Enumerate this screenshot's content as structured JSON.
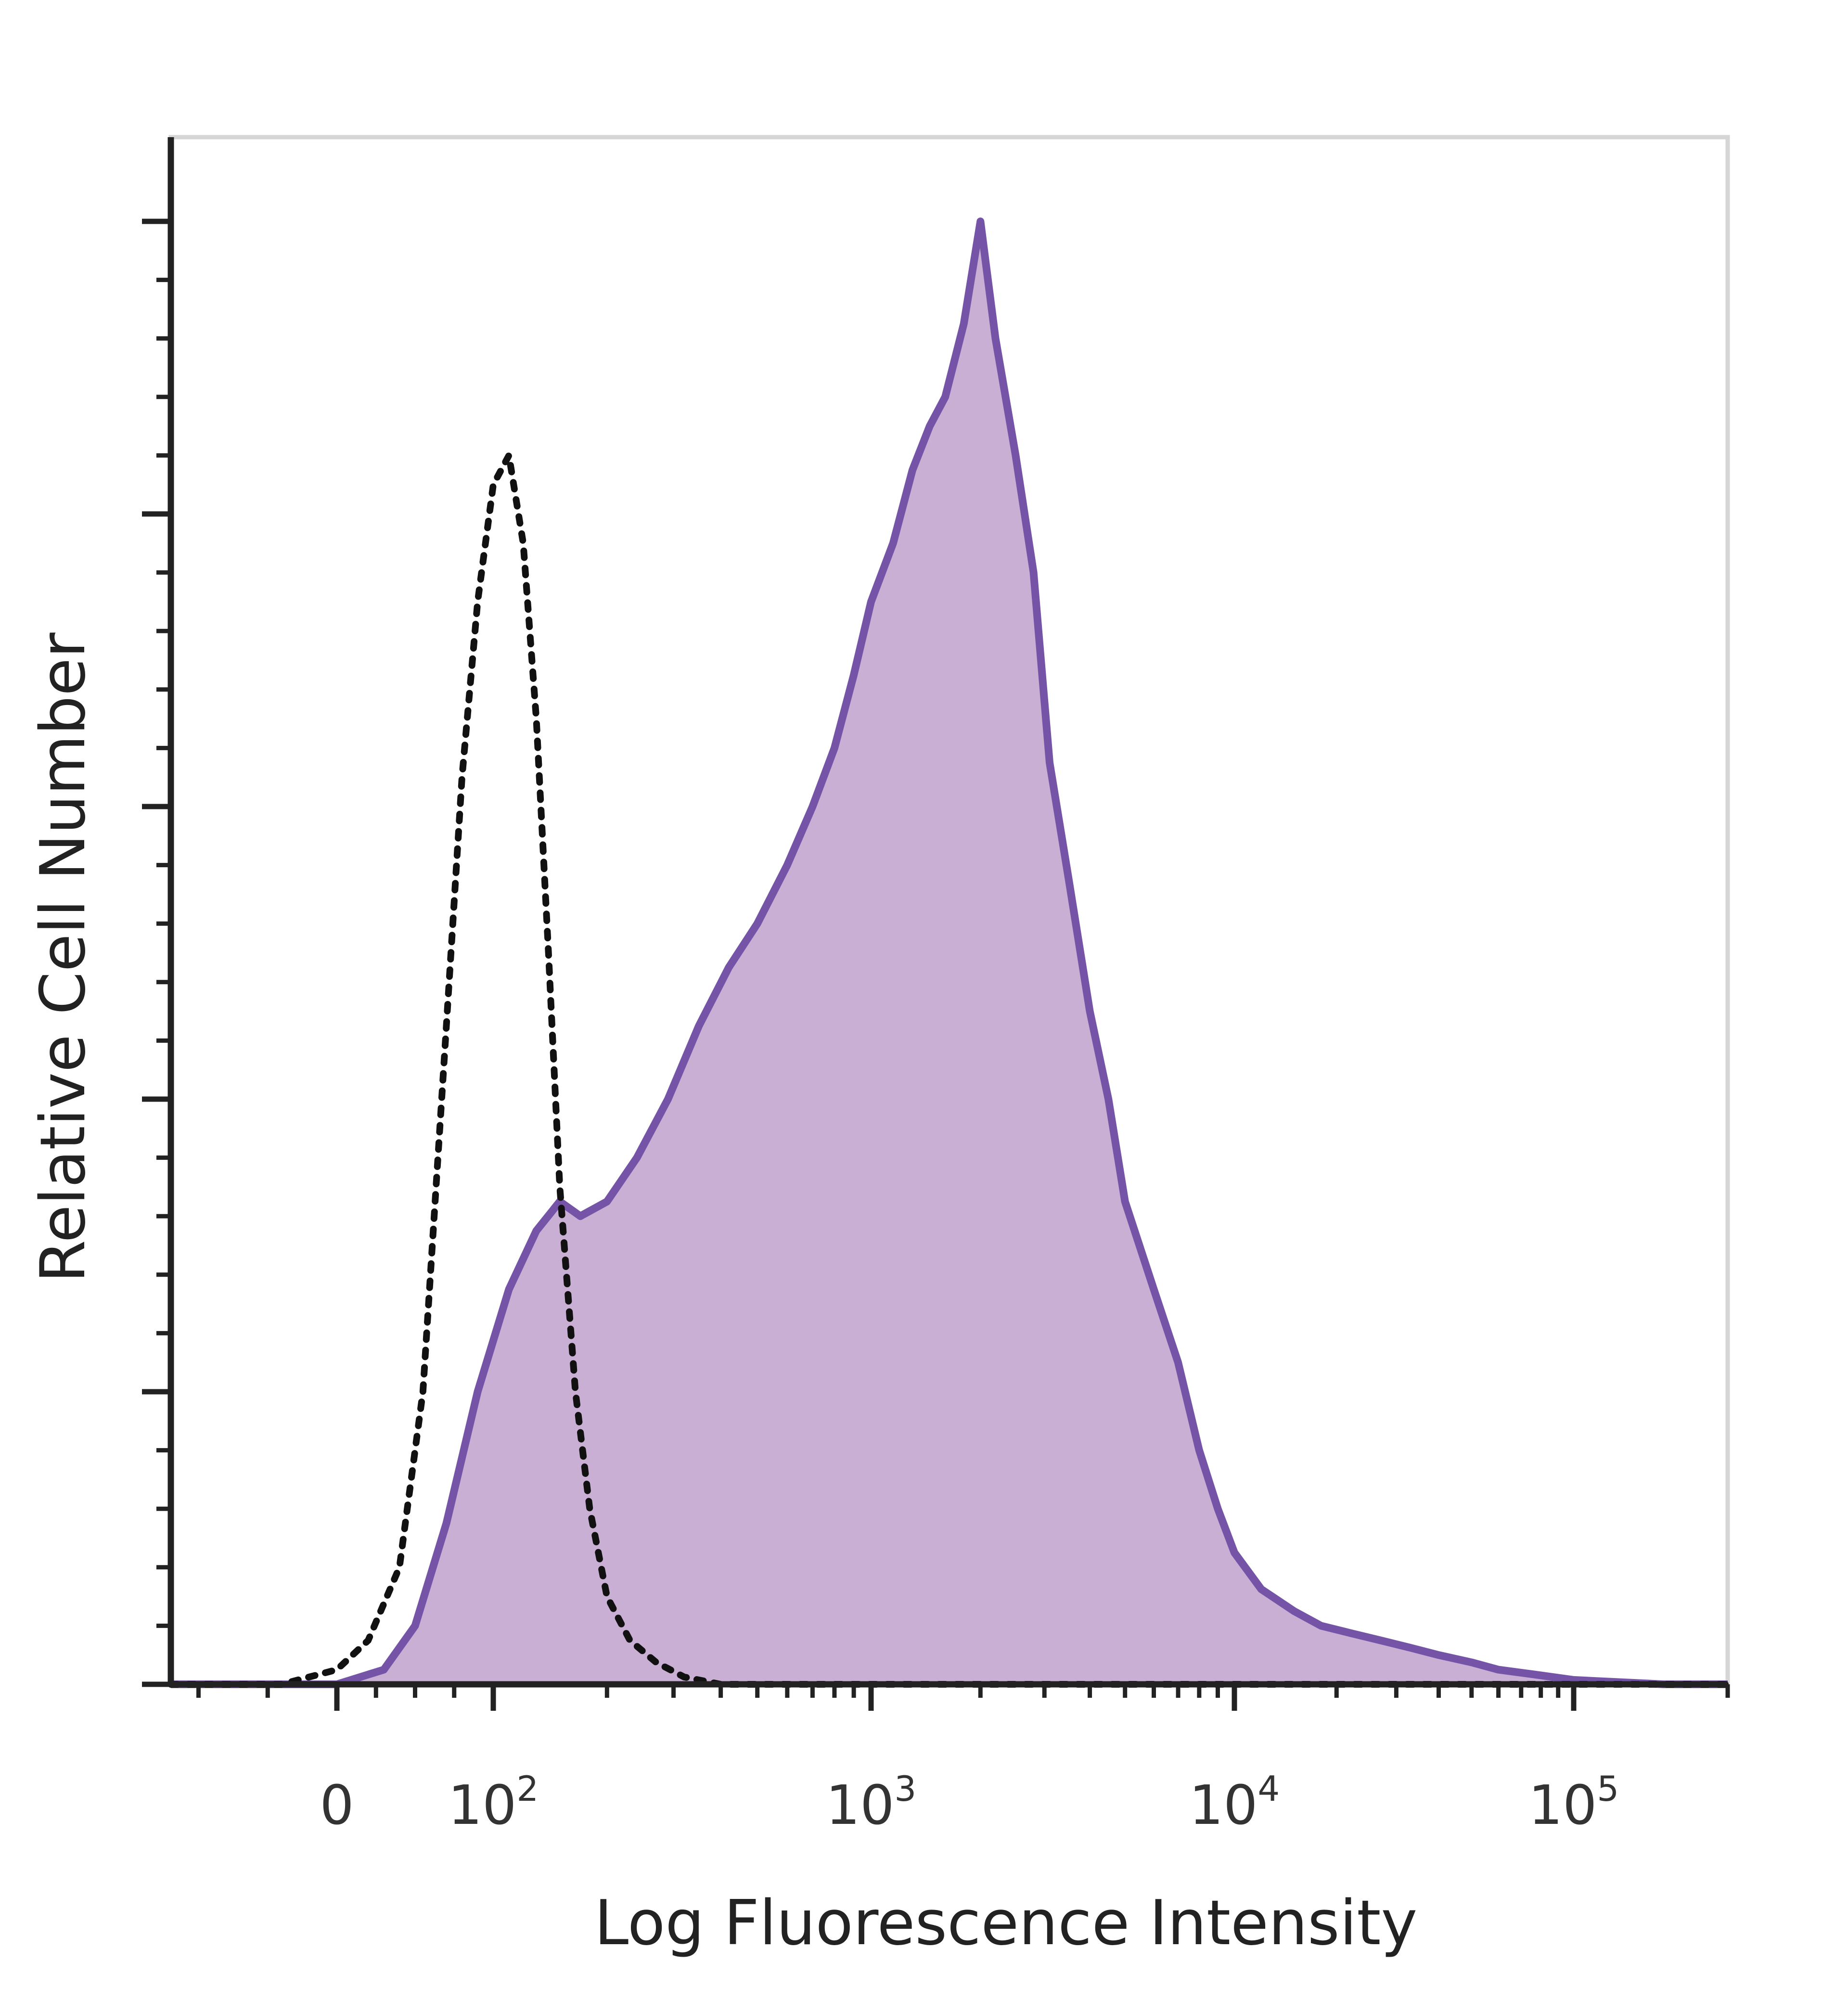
{
  "chart_data": {
    "type": "area",
    "xlabel": "Log Fluorescence Intensity",
    "ylabel": "Relative Cell Number",
    "x_scale": "biexponential",
    "xlim": [
      -120,
      200000
    ],
    "ylim": [
      0,
      105
    ],
    "grid": false,
    "legend": "none",
    "x_tick_labels": [
      {
        "value": 0,
        "base": "0",
        "exp": ""
      },
      {
        "value": 100,
        "base": "10",
        "exp": "2"
      },
      {
        "value": 1000,
        "base": "10",
        "exp": "3"
      },
      {
        "value": 10000,
        "base": "10",
        "exp": "4"
      },
      {
        "value": 100000,
        "base": "10",
        "exp": "5"
      }
    ],
    "series": [
      {
        "style": "dotted-black",
        "color": "#111111",
        "x": [
          -120,
          -40,
          0,
          20,
          40,
          55,
          70,
          80,
          90,
          100,
          110,
          120,
          130,
          140,
          150,
          165,
          180,
          200,
          230,
          270,
          320,
          400,
          600,
          1000,
          3000,
          10000,
          50000,
          200000
        ],
        "y": [
          0,
          0,
          1,
          3,
          8,
          20,
          45,
          62,
          74,
          82,
          84,
          78,
          66,
          50,
          34,
          20,
          12,
          6,
          3,
          1.5,
          0.5,
          0,
          0,
          0,
          0,
          0,
          0,
          0
        ]
      },
      {
        "style": "filled-purple",
        "color": "#7554a8",
        "fill": "#c8afd3",
        "x": [
          -120,
          0,
          30,
          50,
          70,
          90,
          110,
          130,
          150,
          170,
          200,
          240,
          290,
          350,
          420,
          500,
          600,
          700,
          800,
          900,
          1000,
          1150,
          1300,
          1450,
          1600,
          1800,
          2000,
          2200,
          2500,
          2800,
          3100,
          3500,
          4000,
          4500,
          5000,
          6000,
          7000,
          8000,
          9000,
          10000,
          12000,
          15000,
          18000,
          22000,
          27000,
          33000,
          40000,
          50000,
          60000,
          75000,
          100000,
          150000,
          200000
        ],
        "y": [
          0,
          0,
          1,
          4,
          11,
          20,
          27,
          31,
          33,
          32,
          33,
          36,
          40,
          45,
          49,
          52,
          56,
          60,
          64,
          69,
          74,
          78,
          83,
          86,
          88,
          93,
          100,
          92,
          84,
          76,
          63,
          55,
          46,
          40,
          33,
          27,
          22,
          16,
          12,
          9,
          6.5,
          5,
          4,
          3.5,
          3,
          2.5,
          2,
          1.5,
          1,
          0.7,
          0.3,
          0,
          0
        ]
      }
    ]
  }
}
